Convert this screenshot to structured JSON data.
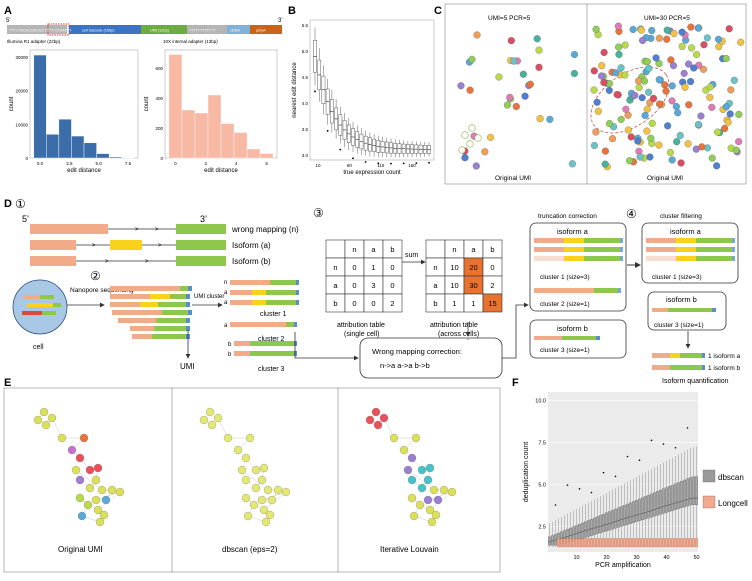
{
  "panel_letters": {
    "a": "A",
    "b": "B",
    "c": "C",
    "d": "D",
    "e": "E",
    "f": "F"
  },
  "panel_a": {
    "prime5": "5'",
    "prime3": "3'",
    "segments": [
      "TTT CTACACGACGCTCTT CCGATCT",
      "cell barcode (16bp)",
      "UMI (12bp)",
      "TTTTTTTTTTTT",
      "cDNA",
      "polyA"
    ],
    "caption_left": "Illumina R1 adapter (22bp)",
    "caption_right": "10X internal adapter (13bp)",
    "colors": {
      "left_hist": "#3b6ea8",
      "right_hist": "#f7b8a4",
      "seg_gray": "#b5b5b5",
      "seg_blue": "#3c73c2",
      "seg_green": "#6dac43",
      "seg_orange": "#c8641b"
    }
  },
  "chart_left": {
    "type": "bar",
    "xlabel": "edit distance",
    "ylabel": "count",
    "x": [
      0,
      1,
      2,
      3,
      4,
      5,
      6,
      7
    ],
    "values": [
      30500,
      7000,
      11500,
      6500,
      4500,
      1300,
      300,
      100
    ],
    "ylim": [
      0,
      32000
    ],
    "yticks": [
      "0",
      "10000",
      "20000",
      "30000"
    ],
    "xticks": [
      "0.0",
      "2.5",
      "5.0",
      "7.5"
    ]
  },
  "chart_right": {
    "type": "bar",
    "xlabel": "edit distance",
    "ylabel": "count",
    "x": [
      0,
      1,
      2,
      3,
      4,
      5,
      6,
      7
    ],
    "values": [
      690,
      320,
      300,
      420,
      230,
      170,
      60,
      30
    ],
    "ylim": [
      0,
      720
    ],
    "yticks": [
      "0",
      "200",
      "400",
      "600"
    ],
    "xticks": [
      "0",
      "2",
      "4",
      "6"
    ]
  },
  "chart_b": {
    "type": "box",
    "xlabel": "true expression count",
    "ylabel": "nearest edit distance",
    "yticks": [
      "3.0",
      "3.5",
      "4.0",
      "4.5",
      "5.0",
      "5.5"
    ],
    "xticks": [
      "10",
      "60",
      "110",
      "160"
    ],
    "ylim": [
      2.9,
      5.6
    ]
  },
  "panel_c": {
    "left_title": "UMI=5 PCR=5",
    "right_title": "UMI=30  PCR=5",
    "left_caption": "Original UMI",
    "right_caption": "Original UMI"
  },
  "panel_d": {
    "circle1": "①",
    "circle2": "②",
    "circle3": "③",
    "circle4": "④",
    "prime5": "5’",
    "prime3": "3’",
    "wrong_mapping": "wrong mapping (n)",
    "isoform_a": "Isoform (a)",
    "isoform_b": "Isoform (b)",
    "nanopore": "Nanopore sequencing",
    "cell": "cell",
    "umi_cluster": "UMI cluster",
    "umi": "UMI",
    "cluster1": "cluster 1",
    "cluster2": "cluster 2",
    "cluster3": "cluster 3",
    "row_n": "n",
    "row_a": "a",
    "row_b": "b",
    "table1": {
      "header": [
        "",
        "n",
        "a",
        "b"
      ],
      "rows": [
        [
          "n",
          "0",
          "1",
          "0"
        ],
        [
          "a",
          "0",
          "3",
          "0"
        ],
        [
          "b",
          "0",
          "0",
          "2"
        ]
      ],
      "caption1": "attribution table",
      "caption2": "(single cell)"
    },
    "sum": "sum",
    "table2": {
      "header": [
        "",
        "n",
        "a",
        "b"
      ],
      "rows": [
        [
          "n",
          "10",
          "20",
          "0"
        ],
        [
          "a",
          "10",
          "30",
          "2"
        ],
        [
          "b",
          "1",
          "1",
          "15"
        ]
      ],
      "caption1": "attribution table",
      "caption2": "(across cells)"
    },
    "wmc_title": "Wrong mapping correction:",
    "wmc_rules": "n->a   a->a   b->b",
    "truncation": "truncation correction",
    "cluster_filtering": "cluster filtering",
    "iso_a": "isoform a",
    "iso_b": "isoform b",
    "c1_size3": "cluster 1 (size=3)",
    "c2_size1": "cluster 2 (size=1)",
    "c3_size1": "cluster 3 (size=1)",
    "q1": "1 isoform a",
    "q2": "1 isoform b",
    "quant": "Isoform quantification",
    "colors": {
      "salmon": "#f2ab88",
      "yellow": "#f8d21b",
      "green": "#8dc74c",
      "blue": "#5b8ec9",
      "highlight": "#e9722e"
    }
  },
  "panel_e": {
    "captions": [
      "Original UMI",
      "dbscan (eps=2)",
      "Iterative Louvain"
    ]
  },
  "chart_f": {
    "type": "box",
    "xlabel": "PCR amplification",
    "ylabel": "deduplication count",
    "yticks": [
      "2.5",
      "5.0",
      "7.5",
      "10.0"
    ],
    "xticks": [
      "10",
      "20",
      "30",
      "40",
      "50"
    ],
    "ylim": [
      1,
      10.5
    ],
    "legend": [
      {
        "name": "dbscan",
        "color": "#9a9a9a"
      },
      {
        "name": "Longcell",
        "color": "#f2a98d"
      }
    ]
  }
}
